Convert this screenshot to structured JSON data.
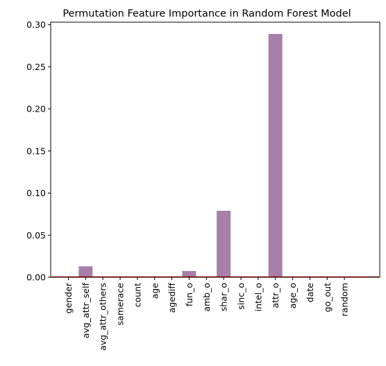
{
  "chart_data": {
    "type": "bar",
    "title": "Permutation Feature Importance in Random Forest Model",
    "xlabel": "",
    "ylabel": "",
    "categories": [
      "gender",
      "avg_attr_self",
      "avg_attr_others",
      "samerace",
      "count",
      "age",
      "agediff",
      "fun_o",
      "amb_o",
      "shar_o",
      "sinc_o",
      "intel_o",
      "attr_o",
      "age_o",
      "date",
      "go_out",
      "random"
    ],
    "values": [
      0.0,
      0.013,
      0.0,
      0.0,
      0.0,
      0.0,
      0.0,
      0.0075,
      0.0,
      0.079,
      0.0,
      0.0,
      0.289,
      0.0,
      0.0,
      0.0,
      0.0
    ],
    "ylim": [
      0,
      0.303
    ],
    "yticks": [
      "0.00",
      "0.05",
      "0.10",
      "0.15",
      "0.20",
      "0.25",
      "0.30"
    ],
    "ytick_values": [
      0,
      0.05,
      0.1,
      0.15,
      0.2,
      0.25,
      0.3
    ],
    "grid": false,
    "bar_color": "#a87fa8",
    "baseline_color": "#cc0000"
  }
}
